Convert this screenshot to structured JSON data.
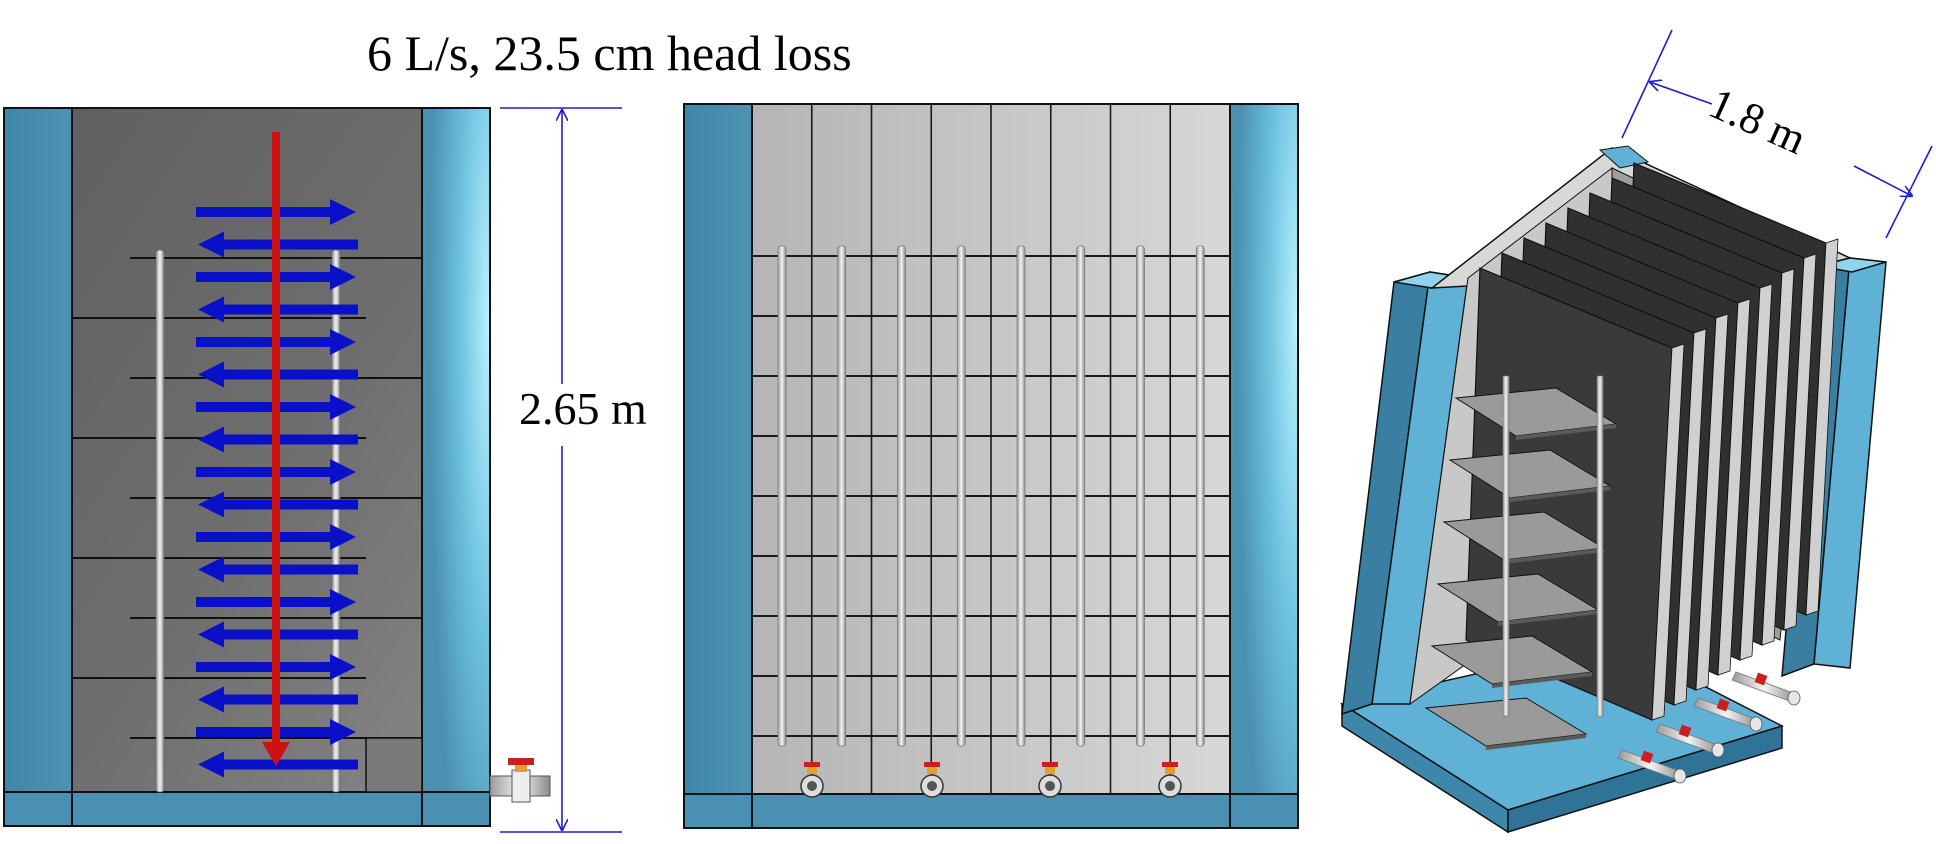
{
  "labels": {
    "flow_rate": "6 L/s, 23.5 cm head loss",
    "height": "2.65 m",
    "width": "1.8 m"
  },
  "colors": {
    "wall_blue": "#4d8fb0",
    "wall_blue_light": "#8fd8f2",
    "arrow_blue": "#0a10c8",
    "arrow_red": "#cc1111",
    "dimension_line": "#1e1ed0",
    "baffle_dark": "#3b3b3b",
    "panel_gray": "#bdbdbd"
  },
  "views": {
    "side_view": {
      "name": "side-section-view"
    },
    "front_view": {
      "name": "front-section-view"
    },
    "iso_view": {
      "name": "isometric-view"
    }
  }
}
